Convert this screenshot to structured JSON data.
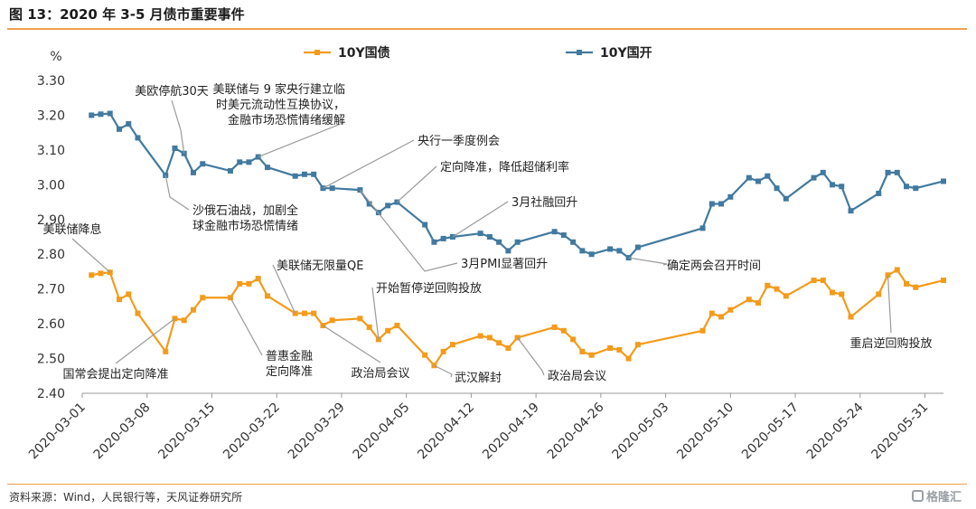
{
  "header": {
    "title": "图 13：2020 年 3-5 月债市重要事件"
  },
  "footer": {
    "source": "资料来源：Wind，人民银行等，天风证券研究所",
    "watermark": "格隆汇"
  },
  "colors": {
    "cgb": "#f39b1b",
    "cdb": "#41799f",
    "rule": "#f0a050",
    "axis": "#999999",
    "leader": "#9a9a9a"
  },
  "chart_data": {
    "type": "line",
    "ylabel": "%",
    "ylim": [
      2.4,
      3.3
    ],
    "yticks": [
      "2.40",
      "2.50",
      "2.60",
      "2.70",
      "2.80",
      "2.90",
      "3.00",
      "3.10",
      "3.20",
      "3.30"
    ],
    "xlim": [
      "2020-03-01",
      "2020-06-02"
    ],
    "xticks": [
      "2020-03-01",
      "2020-03-08",
      "2020-03-15",
      "2020-03-22",
      "2020-03-29",
      "2020-04-05",
      "2020-04-12",
      "2020-04-19",
      "2020-04-26",
      "2020-05-03",
      "2020-05-10",
      "2020-05-17",
      "2020-05-24",
      "2020-05-31"
    ],
    "grid": false,
    "legend_position": "top",
    "series": [
      {
        "name": "10Y国债",
        "color": "#f39b1b",
        "points": [
          [
            "2020-03-02",
            2.74
          ],
          [
            "2020-03-03",
            2.745
          ],
          [
            "2020-03-04",
            2.748
          ],
          [
            "2020-03-05",
            2.67
          ],
          [
            "2020-03-06",
            2.685
          ],
          [
            "2020-03-07",
            2.63
          ],
          [
            "2020-03-10",
            2.52
          ],
          [
            "2020-03-11",
            2.615
          ],
          [
            "2020-03-12",
            2.61
          ],
          [
            "2020-03-13",
            2.64
          ],
          [
            "2020-03-14",
            2.675
          ],
          [
            "2020-03-17",
            2.675
          ],
          [
            "2020-03-18",
            2.715
          ],
          [
            "2020-03-19",
            2.715
          ],
          [
            "2020-03-20",
            2.73
          ],
          [
            "2020-03-21",
            2.68
          ],
          [
            "2020-03-24",
            2.63
          ],
          [
            "2020-03-25",
            2.63
          ],
          [
            "2020-03-26",
            2.63
          ],
          [
            "2020-03-27",
            2.595
          ],
          [
            "2020-03-28",
            2.61
          ],
          [
            "2020-03-31",
            2.615
          ],
          [
            "2020-04-01",
            2.59
          ],
          [
            "2020-04-02",
            2.555
          ],
          [
            "2020-04-03",
            2.58
          ],
          [
            "2020-04-04",
            2.595
          ],
          [
            "2020-04-07",
            2.51
          ],
          [
            "2020-04-08",
            2.48
          ],
          [
            "2020-04-09",
            2.52
          ],
          [
            "2020-04-10",
            2.54
          ],
          [
            "2020-04-13",
            2.565
          ],
          [
            "2020-04-14",
            2.56
          ],
          [
            "2020-04-15",
            2.545
          ],
          [
            "2020-04-16",
            2.53
          ],
          [
            "2020-04-17",
            2.56
          ],
          [
            "2020-04-21",
            2.59
          ],
          [
            "2020-04-22",
            2.58
          ],
          [
            "2020-04-23",
            2.555
          ],
          [
            "2020-04-24",
            2.52
          ],
          [
            "2020-04-25",
            2.51
          ],
          [
            "2020-04-27",
            2.53
          ],
          [
            "2020-04-28",
            2.525
          ],
          [
            "2020-04-29",
            2.5
          ],
          [
            "2020-04-30",
            2.54
          ],
          [
            "2020-05-07",
            2.58
          ],
          [
            "2020-05-08",
            2.63
          ],
          [
            "2020-05-09",
            2.62
          ],
          [
            "2020-05-10",
            2.64
          ],
          [
            "2020-05-12",
            2.67
          ],
          [
            "2020-05-13",
            2.66
          ],
          [
            "2020-05-14",
            2.71
          ],
          [
            "2020-05-15",
            2.7
          ],
          [
            "2020-05-16",
            2.68
          ],
          [
            "2020-05-19",
            2.725
          ],
          [
            "2020-05-20",
            2.725
          ],
          [
            "2020-05-21",
            2.69
          ],
          [
            "2020-05-22",
            2.685
          ],
          [
            "2020-05-23",
            2.62
          ],
          [
            "2020-05-26",
            2.685
          ],
          [
            "2020-05-27",
            2.74
          ],
          [
            "2020-05-28",
            2.755
          ],
          [
            "2020-05-29",
            2.715
          ],
          [
            "2020-05-30",
            2.705
          ],
          [
            "2020-06-02",
            2.725
          ]
        ]
      },
      {
        "name": "10Y国开",
        "color": "#41799f",
        "points": [
          [
            "2020-03-02",
            3.2
          ],
          [
            "2020-03-03",
            3.203
          ],
          [
            "2020-03-04",
            3.205
          ],
          [
            "2020-03-05",
            3.16
          ],
          [
            "2020-03-06",
            3.175
          ],
          [
            "2020-03-07",
            3.135
          ],
          [
            "2020-03-10",
            3.027
          ],
          [
            "2020-03-11",
            3.105
          ],
          [
            "2020-03-12",
            3.09
          ],
          [
            "2020-03-13",
            3.035
          ],
          [
            "2020-03-14",
            3.06
          ],
          [
            "2020-03-17",
            3.04
          ],
          [
            "2020-03-18",
            3.065
          ],
          [
            "2020-03-19",
            3.065
          ],
          [
            "2020-03-20",
            3.08
          ],
          [
            "2020-03-21",
            3.05
          ],
          [
            "2020-03-24",
            3.025
          ],
          [
            "2020-03-25",
            3.03
          ],
          [
            "2020-03-26",
            3.03
          ],
          [
            "2020-03-27",
            2.99
          ],
          [
            "2020-03-28",
            2.99
          ],
          [
            "2020-03-31",
            2.985
          ],
          [
            "2020-04-01",
            2.945
          ],
          [
            "2020-04-02",
            2.92
          ],
          [
            "2020-04-03",
            2.94
          ],
          [
            "2020-04-04",
            2.95
          ],
          [
            "2020-04-07",
            2.885
          ],
          [
            "2020-04-08",
            2.835
          ],
          [
            "2020-04-09",
            2.845
          ],
          [
            "2020-04-10",
            2.85
          ],
          [
            "2020-04-13",
            2.86
          ],
          [
            "2020-04-14",
            2.85
          ],
          [
            "2020-04-15",
            2.835
          ],
          [
            "2020-04-16",
            2.81
          ],
          [
            "2020-04-17",
            2.835
          ],
          [
            "2020-04-21",
            2.865
          ],
          [
            "2020-04-22",
            2.855
          ],
          [
            "2020-04-23",
            2.835
          ],
          [
            "2020-04-24",
            2.81
          ],
          [
            "2020-04-25",
            2.8
          ],
          [
            "2020-04-27",
            2.815
          ],
          [
            "2020-04-28",
            2.81
          ],
          [
            "2020-04-29",
            2.79
          ],
          [
            "2020-04-30",
            2.82
          ],
          [
            "2020-05-07",
            2.875
          ],
          [
            "2020-05-08",
            2.945
          ],
          [
            "2020-05-09",
            2.945
          ],
          [
            "2020-05-10",
            2.965
          ],
          [
            "2020-05-12",
            3.02
          ],
          [
            "2020-05-13",
            3.01
          ],
          [
            "2020-05-14",
            3.025
          ],
          [
            "2020-05-15",
            2.99
          ],
          [
            "2020-05-16",
            2.96
          ],
          [
            "2020-05-19",
            3.02
          ],
          [
            "2020-05-20",
            3.035
          ],
          [
            "2020-05-21",
            3.0
          ],
          [
            "2020-05-22",
            2.995
          ],
          [
            "2020-05-23",
            2.925
          ],
          [
            "2020-05-26",
            2.975
          ],
          [
            "2020-05-27",
            3.035
          ],
          [
            "2020-05-28",
            3.035
          ],
          [
            "2020-05-29",
            2.995
          ],
          [
            "2020-05-30",
            2.99
          ],
          [
            "2020-06-02",
            3.01
          ]
        ]
      }
    ],
    "annotations": [
      {
        "lines": [
          "美欧停航30天"
        ],
        "target": [
          "2020-03-12",
          3.09
        ],
        "align": "middle"
      },
      {
        "lines": [
          "美联储与 9 家央行建立临",
          "时美元流动性互换协议，",
          "金融市场恐慌情绪缓解"
        ],
        "target": [
          "2020-03-20",
          3.08
        ],
        "align": "end"
      },
      {
        "lines": [
          "央行一季度例会"
        ],
        "target": [
          "2020-03-27",
          2.99
        ],
        "align": "start"
      },
      {
        "lines": [
          "定向降准，降低超储利率"
        ],
        "target": [
          "2020-04-04",
          2.95
        ],
        "align": "start"
      },
      {
        "lines": [
          "沙俄石油战，加剧全",
          "球金融市场恐慌情绪"
        ],
        "target": [
          "2020-03-10",
          3.027
        ],
        "align": "start"
      },
      {
        "lines": [
          "3月社融回升"
        ],
        "target": [
          "2020-04-10",
          2.85
        ],
        "align": "start"
      },
      {
        "lines": [
          "3月PMI显著回升"
        ],
        "target": [
          "2020-03-31",
          2.985
        ],
        "align": "start"
      },
      {
        "lines": [
          "确定两会召开时间"
        ],
        "target": [
          "2020-04-29",
          2.79
        ],
        "align": "start"
      },
      {
        "lines": [
          "美联储降息"
        ],
        "target": [
          "2020-03-04",
          2.748
        ],
        "align": "middle"
      },
      {
        "lines": [
          "美联储无限量QE"
        ],
        "target": [
          "2020-03-24",
          2.63
        ],
        "align": "start"
      },
      {
        "lines": [
          "开始暂停逆回购投放"
        ],
        "target": [
          "2020-04-02",
          2.555
        ],
        "align": "start"
      },
      {
        "lines": [
          "国常会提出定向降准"
        ],
        "target": [
          "2020-03-11",
          2.615
        ],
        "align": "middle"
      },
      {
        "lines": [
          "普惠金融",
          "定向降准"
        ],
        "target": [
          "2020-03-17",
          2.675
        ],
        "align": "start"
      },
      {
        "lines": [
          "政治局会议"
        ],
        "target": [
          "2020-03-27",
          2.595
        ],
        "align": "middle"
      },
      {
        "lines": [
          "武汉解封"
        ],
        "target": [
          "2020-04-08",
          2.48
        ],
        "align": "start"
      },
      {
        "lines": [
          "政治局会议"
        ],
        "target": [
          "2020-04-17",
          2.56
        ],
        "align": "start"
      },
      {
        "lines": [
          "重启逆回购投放"
        ],
        "target": [
          "2020-05-27",
          2.74
        ],
        "align": "middle"
      }
    ]
  }
}
